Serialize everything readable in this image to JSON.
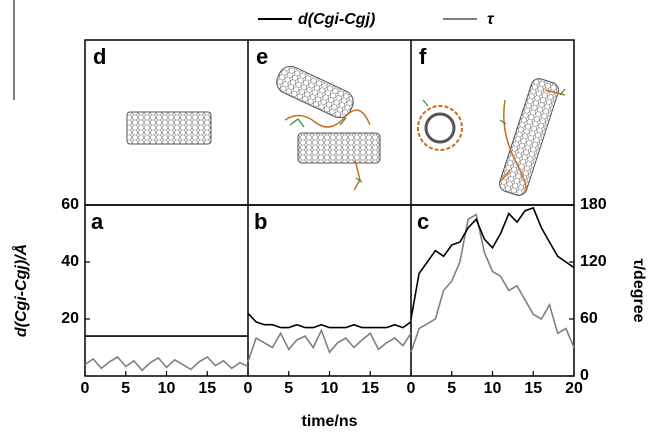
{
  "image_panels": [
    {
      "panel": "d"
    },
    {
      "panel": "e"
    },
    {
      "panel": "f"
    }
  ],
  "chart_data": [
    {
      "type": "line",
      "panel": "a",
      "ylabel": "d(Cgi-Cgj)/Å",
      "x": [
        0,
        1,
        2,
        3,
        4,
        5,
        6,
        7,
        8,
        9,
        10,
        11,
        12,
        13,
        14,
        15,
        16,
        17,
        18,
        19,
        20
      ],
      "xlim": [
        0,
        20
      ],
      "xticks": [
        0,
        5,
        10,
        15
      ],
      "ylim": [
        0,
        60
      ],
      "yticks": [
        20,
        40,
        60
      ],
      "y2lim": [
        0,
        180
      ],
      "series": [
        {
          "name": "d(Cgi-Cgj)",
          "color": "#000000",
          "values": [
            14,
            14,
            14,
            14,
            14,
            14,
            14,
            14,
            14,
            14,
            14,
            14,
            14,
            14,
            14,
            14,
            14,
            14,
            14,
            14,
            14
          ]
        },
        {
          "name": "τ",
          "color": "#808080",
          "axis": "y2",
          "values": [
            12,
            18,
            8,
            15,
            20,
            10,
            16,
            6,
            14,
            19,
            9,
            17,
            12,
            7,
            15,
            20,
            11,
            16,
            8,
            14,
            10
          ]
        }
      ]
    },
    {
      "type": "line",
      "panel": "b",
      "xlabel": "time/ns",
      "x": [
        0,
        1,
        2,
        3,
        4,
        5,
        6,
        7,
        8,
        9,
        10,
        11,
        12,
        13,
        14,
        15,
        16,
        17,
        18,
        19,
        20
      ],
      "xlim": [
        0,
        20
      ],
      "xticks": [
        0,
        5,
        10,
        15
      ],
      "ylim": [
        0,
        60
      ],
      "y2lim": [
        0,
        180
      ],
      "series": [
        {
          "name": "d(Cgi-Cgj)",
          "color": "#000000",
          "values": [
            22,
            19,
            18,
            18,
            17,
            17,
            18,
            17,
            17,
            18,
            17,
            17,
            17,
            18,
            17,
            17,
            17,
            17,
            18,
            17,
            19
          ]
        },
        {
          "name": "τ",
          "color": "#808080",
          "axis": "y2",
          "values": [
            15,
            40,
            35,
            30,
            45,
            28,
            38,
            42,
            30,
            48,
            25,
            35,
            40,
            30,
            38,
            45,
            28,
            35,
            40,
            32,
            45
          ]
        }
      ]
    },
    {
      "type": "line",
      "panel": "c",
      "y2label": "τ/degree",
      "x": [
        0,
        1,
        2,
        3,
        4,
        5,
        6,
        7,
        8,
        9,
        10,
        11,
        12,
        13,
        14,
        15,
        16,
        17,
        18,
        19,
        20
      ],
      "xlim": [
        0,
        20
      ],
      "xticks": [
        0,
        5,
        10,
        15,
        20
      ],
      "ylim": [
        0,
        60
      ],
      "y2lim": [
        0,
        180
      ],
      "y2ticks": [
        0,
        60,
        120,
        180
      ],
      "series": [
        {
          "name": "d(Cgi-Cgj)",
          "color": "#000000",
          "values": [
            20,
            36,
            40,
            44,
            42,
            46,
            47,
            52,
            55,
            48,
            45,
            50,
            57,
            54,
            58,
            59,
            52,
            47,
            42,
            40,
            38
          ]
        },
        {
          "name": "τ",
          "color": "#808080",
          "axis": "y2",
          "values": [
            25,
            50,
            55,
            60,
            90,
            100,
            120,
            165,
            170,
            130,
            110,
            105,
            90,
            95,
            80,
            65,
            60,
            75,
            45,
            50,
            30
          ]
        }
      ]
    }
  ]
}
